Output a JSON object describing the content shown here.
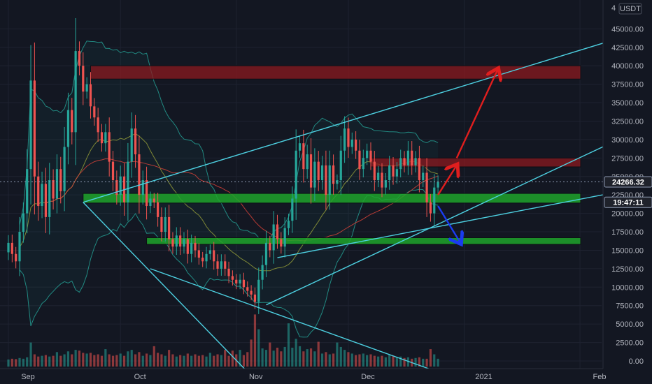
{
  "chart_data": {
    "type": "candlestick",
    "symbol_currency": "USDT",
    "currency_prefix": "4",
    "colors": {
      "background": "#131722",
      "up": "#26a69a",
      "down": "#ef5350",
      "trendline": "#4dd0e1",
      "support_zone": "#1fa32a",
      "resistance_zone": "#8b1a1f",
      "arrow_up": "#e01e1e",
      "arrow_down": "#1a3cf0",
      "bollinger": "#26a69a",
      "ma_fast": "#9aa33a",
      "ma_slow": "#e0433a"
    },
    "x_labels": [
      {
        "label": "Sep",
        "day": 0
      },
      {
        "label": "Oct",
        "day": 30
      },
      {
        "label": "Nov",
        "day": 61
      },
      {
        "label": "Dec",
        "day": 91
      },
      {
        "label": "2021",
        "day": 122
      },
      {
        "label": "Feb",
        "day": 153
      }
    ],
    "y_ticks": [
      0,
      2500,
      5000,
      7500,
      10000,
      12500,
      15000,
      17500,
      20000,
      22500,
      25000,
      27500,
      30000,
      32500,
      35000,
      37500,
      40000,
      42500,
      45000
    ],
    "y_tick_labels": [
      "0.00",
      "2500.00",
      "5000.00",
      "7500.00",
      "10000.00",
      "12500.00",
      "15000.00",
      "17500.00",
      "20000.00",
      "22500.00",
      "25000.00",
      "27500.00",
      "30000.00",
      "32500.00",
      "35000.00",
      "37500.00",
      "40000.00",
      "42500.00",
      "45000.00"
    ],
    "ylim": [
      -1250,
      47000
    ],
    "current_price": "24266.32",
    "current_price_value": 24266,
    "countdown": "19:47:11",
    "countdown_value": 21500,
    "closes": [
      16000,
      14500,
      13500,
      17500,
      20000,
      26000,
      38000,
      25000,
      21000,
      24000,
      19500,
      24500,
      22000,
      26000,
      23000,
      29000,
      34000,
      31000,
      42000,
      40000,
      36500,
      37500,
      34500,
      33000,
      31000,
      29500,
      31000,
      27000,
      24500,
      22500,
      25000,
      21500,
      27000,
      31500,
      28000,
      22500,
      24500,
      21000,
      22000,
      21500,
      19500,
      17500,
      19500,
      16500,
      15500,
      17000,
      15500,
      16500,
      14500,
      16000,
      15000,
      14000,
      13500,
      14500,
      15000,
      13500,
      12500,
      13500,
      12500,
      11500,
      11000,
      10500,
      11000,
      10000,
      9500,
      9000,
      8000,
      11000,
      13000,
      16000,
      15000,
      18500,
      16500,
      15500,
      18000,
      19000,
      22000,
      28500,
      29500,
      26000,
      28000,
      23500,
      27000,
      24500,
      26500,
      22500,
      26500,
      24000,
      24500,
      28500,
      31500,
      29000,
      30000,
      28500,
      26000,
      27500,
      28500,
      27000,
      24500,
      25500,
      23500,
      24500,
      26500,
      25000,
      26000,
      27500,
      26500,
      28500,
      26500,
      27500,
      24500,
      25500,
      21500,
      20000,
      23500,
      24266
    ],
    "volumes": [
      200,
      300,
      250,
      400,
      300,
      500,
      2500,
      900,
      600,
      700,
      800,
      600,
      700,
      1200,
      700,
      900,
      1300,
      900,
      1500,
      1400,
      1100,
      1000,
      1100,
      800,
      900,
      700,
      1600,
      900,
      700,
      800,
      1000,
      700,
      1300,
      1500,
      900,
      1200,
      700,
      1000,
      800,
      2000,
      1100,
      900,
      700,
      1500,
      900,
      600,
      800,
      700,
      1000,
      700,
      900,
      700,
      800,
      600,
      1100,
      700,
      900,
      800,
      1500,
      700,
      1400,
      900,
      1500,
      800,
      1200,
      2900,
      6300,
      4300,
      1700,
      1500,
      2500,
      1400,
      1800,
      1300,
      1900,
      5100,
      1800,
      3000,
      2000,
      1300,
      1600,
      1700,
      1300,
      2600,
      1000,
      1200,
      900,
      1000,
      2500,
      1900,
      1500,
      1200,
      1000,
      800,
      900,
      1000,
      800,
      900,
      700,
      600,
      700,
      500,
      800,
      700,
      500,
      600,
      400,
      500,
      300,
      400,
      500,
      300,
      300,
      1600,
      900,
      300
    ],
    "zones": [
      {
        "type": "resistance",
        "from": 38200,
        "to": 40000,
        "start_day": 22
      },
      {
        "type": "resistance",
        "from": 26300,
        "to": 27500,
        "start_day": 97
      },
      {
        "type": "support",
        "from": 21400,
        "to": 22700,
        "start_day": 20
      },
      {
        "type": "support",
        "from": 15800,
        "to": 16700,
        "start_day": 37
      }
    ],
    "arrows": [
      {
        "direction": "up",
        "from": [
          115,
          22500
        ],
        "to": [
          120,
          26500
        ]
      },
      {
        "direction": "up",
        "from": [
          120,
          27500
        ],
        "to": [
          131,
          39500
        ]
      },
      {
        "direction": "down",
        "from": [
          115,
          21000
        ],
        "to": [
          121,
          16000
        ]
      }
    ]
  }
}
